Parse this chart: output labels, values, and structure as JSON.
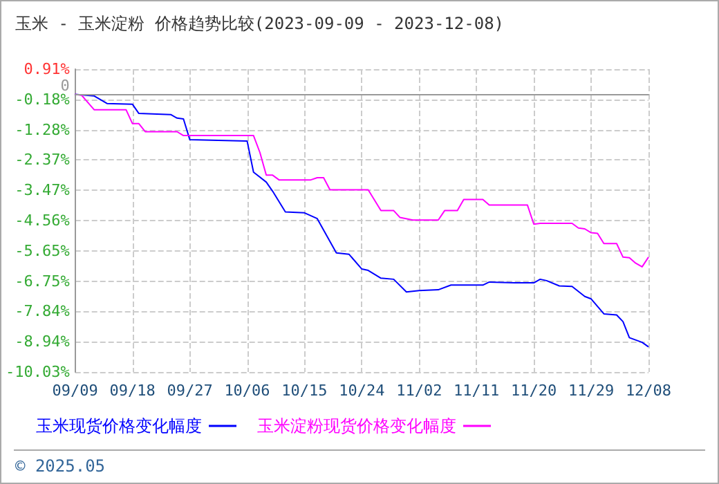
{
  "chart_data": {
    "type": "line",
    "title": "玉米 - 玉米淀粉 价格趋势比较(2023-09-09 - 2023-12-08)",
    "series": [
      {
        "name": "玉米现货价格变化幅度",
        "color": "#0000ff",
        "x": [
          "2023-09-09",
          "2023-09-12",
          "2023-09-14",
          "2023-09-18",
          "2023-09-19",
          "2023-09-24",
          "2023-09-25",
          "2023-09-26",
          "2023-09-27",
          "2023-10-06",
          "2023-10-07",
          "2023-10-09",
          "2023-10-10",
          "2023-10-12",
          "2023-10-15",
          "2023-10-17",
          "2023-10-20",
          "2023-10-22",
          "2023-10-24",
          "2023-10-25",
          "2023-10-27",
          "2023-10-29",
          "2023-10-31",
          "2023-11-02",
          "2023-11-05",
          "2023-11-07",
          "2023-11-12",
          "2023-11-13",
          "2023-11-17",
          "2023-11-20",
          "2023-11-21",
          "2023-11-22",
          "2023-11-24",
          "2023-11-26",
          "2023-11-28",
          "2023-11-29",
          "2023-12-01",
          "2023-12-03",
          "2023-12-04",
          "2023-12-05",
          "2023-12-07",
          "2023-12-08"
        ],
        "values": [
          0,
          -0.06,
          -0.33,
          -0.36,
          -0.69,
          -0.73,
          -0.86,
          -0.89,
          -1.64,
          -1.69,
          -2.81,
          -3.17,
          -3.5,
          -4.25,
          -4.28,
          -4.49,
          -5.73,
          -5.78,
          -6.31,
          -6.36,
          -6.64,
          -6.68,
          -7.14,
          -7.09,
          -7.06,
          -6.89,
          -6.89,
          -6.78,
          -6.81,
          -6.81,
          -6.68,
          -6.73,
          -6.92,
          -6.94,
          -7.3,
          -7.39,
          -7.93,
          -7.97,
          -8.21,
          -8.79,
          -8.96,
          -9.12
        ]
      },
      {
        "name": "玉米淀粉现货价格变化幅度",
        "color": "#ff00ff",
        "x": [
          "2023-09-09",
          "2023-09-10",
          "2023-09-12",
          "2023-09-17",
          "2023-09-18",
          "2023-09-19",
          "2023-09-20",
          "2023-09-25",
          "2023-09-26",
          "2023-10-07",
          "2023-10-08",
          "2023-10-09",
          "2023-10-10",
          "2023-10-11",
          "2023-10-16",
          "2023-10-17",
          "2023-10-18",
          "2023-10-19",
          "2023-10-25",
          "2023-10-27",
          "2023-10-29",
          "2023-10-30",
          "2023-11-01",
          "2023-11-05",
          "2023-11-06",
          "2023-11-08",
          "2023-11-09",
          "2023-11-12",
          "2023-11-13",
          "2023-11-19",
          "2023-11-20",
          "2023-11-21",
          "2023-11-26",
          "2023-11-27",
          "2023-11-28",
          "2023-11-29",
          "2023-11-30",
          "2023-12-01",
          "2023-12-03",
          "2023-12-04",
          "2023-12-05",
          "2023-12-06",
          "2023-12-07",
          "2023-12-08"
        ],
        "values": [
          0,
          -0.03,
          -0.56,
          -0.56,
          -1.06,
          -1.06,
          -1.35,
          -1.35,
          -1.49,
          -1.49,
          -2.1,
          -2.92,
          -2.92,
          -3.09,
          -3.09,
          -3.01,
          -3.01,
          -3.45,
          -3.45,
          -4.2,
          -4.2,
          -4.45,
          -4.54,
          -4.54,
          -4.2,
          -4.2,
          -3.8,
          -3.8,
          -4.0,
          -4.0,
          -4.69,
          -4.66,
          -4.66,
          -4.83,
          -4.86,
          -5.0,
          -5.02,
          -5.39,
          -5.39,
          -5.88,
          -5.9,
          -6.1,
          -6.23,
          -5.88
        ]
      }
    ],
    "xlim": [
      "2023-09-09",
      "2023-12-08"
    ],
    "xticks": [
      {
        "value": "2023-09-09",
        "label": "09/09"
      },
      {
        "value": "2023-09-18",
        "label": "09/18"
      },
      {
        "value": "2023-09-27",
        "label": "09/27"
      },
      {
        "value": "2023-10-06",
        "label": "10/06"
      },
      {
        "value": "2023-10-15",
        "label": "10/15"
      },
      {
        "value": "2023-10-24",
        "label": "10/24"
      },
      {
        "value": "2023-11-02",
        "label": "11/02"
      },
      {
        "value": "2023-11-11",
        "label": "11/11"
      },
      {
        "value": "2023-11-20",
        "label": "11/20"
      },
      {
        "value": "2023-11-29",
        "label": "11/29"
      },
      {
        "value": "2023-12-08",
        "label": "12/08"
      }
    ],
    "ylim": [
      -10.03,
      0.91
    ],
    "yticks": [
      {
        "value": 0.91,
        "label": "0.91%"
      },
      {
        "value": -0.18,
        "label": "-0.18%"
      },
      {
        "value": -1.28,
        "label": "-1.28%"
      },
      {
        "value": -2.37,
        "label": "-2.37%"
      },
      {
        "value": -3.47,
        "label": "-3.47%"
      },
      {
        "value": -4.56,
        "label": "-4.56%"
      },
      {
        "value": -5.65,
        "label": "-5.65%"
      },
      {
        "value": -6.75,
        "label": "-6.75%"
      },
      {
        "value": -7.84,
        "label": "-7.84%"
      },
      {
        "value": -8.94,
        "label": "-8.94%"
      },
      {
        "value": -10.03,
        "label": "-10.03%"
      }
    ],
    "ref_lines": [
      {
        "axis": "y",
        "value": 0,
        "label": "0",
        "color": "#999999"
      }
    ],
    "annotations": [
      "© 2025.05"
    ],
    "grid": true,
    "legend": "bottom",
    "marker": "none",
    "line_style": "solid"
  }
}
